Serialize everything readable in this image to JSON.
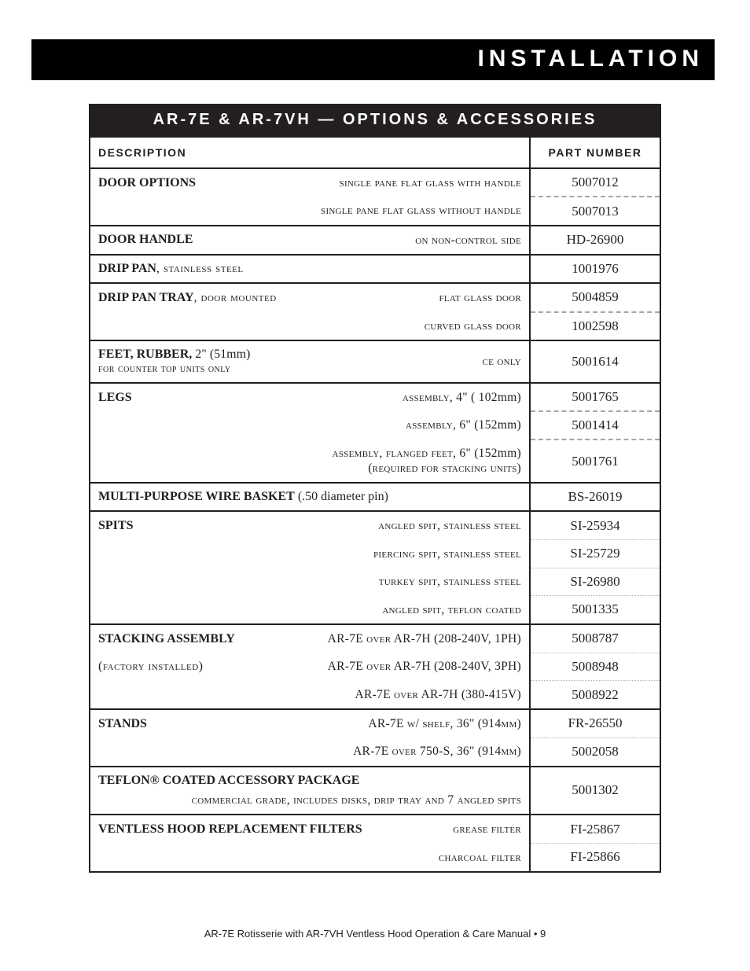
{
  "header": {
    "title": "INSTALLATION"
  },
  "table": {
    "title": "AR-7E & AR-7VH — OPTIONS & ACCESSORIES",
    "columns": {
      "description": "DESCRIPTION",
      "part_number": "PART NUMBER"
    },
    "rows": [
      {
        "sep": "solid",
        "lead": "DOOR OPTIONS",
        "detail_sc": "single pane flat glass with handle",
        "pn": "5007012"
      },
      {
        "sep": "dash",
        "lead": "",
        "detail_sc": "single pane flat glass without handle",
        "pn": "5007013"
      },
      {
        "sep": "solid",
        "lead": "DOOR HANDLE",
        "detail_sc": "on non-control side",
        "pn": "HD-26900"
      },
      {
        "sep": "solid",
        "lead": "DRIP PAN",
        "lead_thin": ", stainless steel",
        "detail_sc": "",
        "pn": "1001976"
      },
      {
        "sep": "solid",
        "lead": "DRIP PAN TRAY",
        "lead_thin": ", door mounted",
        "detail_sc": "flat glass door",
        "pn": "5004859"
      },
      {
        "sep": "dash",
        "lead": "",
        "detail_sc": "curved glass door",
        "pn": "1002598"
      },
      {
        "sep": "solid",
        "tall": true,
        "lead": "FEET, RUBBER,",
        "lead_tail": " 2\" (51mm)",
        "sub_sc": "for counter top units only",
        "detail_sc": "ce only",
        "pn": "5001614"
      },
      {
        "sep": "solid",
        "lead": "LEGS",
        "detail_sc": "assembly,",
        "detail_tail": " 4\" ( 102mm)",
        "pn": "5001765"
      },
      {
        "sep": "dash",
        "lead": "",
        "detail_sc": "assembly,",
        "detail_tail": " 6\" (152mm)",
        "pn": "5001414"
      },
      {
        "sep": "dash",
        "tall": true,
        "lead": "",
        "detail_sc": "assembly, flanged feet,",
        "detail_tail": " 6\" (152mm)",
        "detail_line2_sc": "(required for stacking units)",
        "pn": "5001761"
      },
      {
        "sep": "solid",
        "lead": "MULTI-PURPOSE WIRE BASKET",
        "lead_plain": " (.50 diameter pin)",
        "detail_sc": "",
        "pn": "BS-26019"
      },
      {
        "sep": "solid",
        "lead": "SPITS",
        "detail_sc": "angled spit, stainless steel",
        "pn": "SI-25934"
      },
      {
        "sep": "dot",
        "lead": "",
        "detail_sc": "piercing spit, stainless steel",
        "pn": "SI-25729"
      },
      {
        "sep": "dot",
        "lead": "",
        "detail_sc": "turkey spit, stainless steel",
        "pn": "SI-26980"
      },
      {
        "sep": "dot",
        "lead": "",
        "detail_sc": "angled spit, teflon coated",
        "pn": "5001335"
      },
      {
        "sep": "solid",
        "lead": "STACKING ASSEMBLY",
        "detail_mix": "AR-7E over AR-7H (208-240V, 1PH)",
        "pn": "5008787"
      },
      {
        "sep": "dot",
        "lead_thin_only": "(factory installed)",
        "detail_mix": "AR-7E over AR-7H (208-240V, 3PH)",
        "pn": "5008948"
      },
      {
        "sep": "dot",
        "lead": "",
        "detail_mix": "AR-7E over AR-7H (380-415V)",
        "pn": "5008922"
      },
      {
        "sep": "solid",
        "lead": "STANDS",
        "detail_mix": "AR-7E w/ shelf, 36\" (914mm)",
        "pn": "FR-26550"
      },
      {
        "sep": "dot",
        "lead": "",
        "detail_mix": "AR-7E over 750-S, 36\" (914mm)",
        "pn": "5002058"
      },
      {
        "sep": "solid",
        "tall": true,
        "lead": "TEFLON® COATED ACCESSORY PACKAGE",
        "sub_right_sc": "commercial grade, includes disks, drip tray and 7 angled spits",
        "pn": "5001302"
      },
      {
        "sep": "solid",
        "lead": "VENTLESS HOOD REPLACEMENT FILTERS",
        "detail_sc": "grease filter",
        "pn": "FI-25867"
      },
      {
        "sep": "dot",
        "lead": "",
        "detail_sc": "charcoal filter",
        "pn": "FI-25866"
      }
    ]
  },
  "footer": {
    "text": "AR-7E Rotisserie with AR-7VH Ventless Hood Operation & Care Manual • 9"
  }
}
